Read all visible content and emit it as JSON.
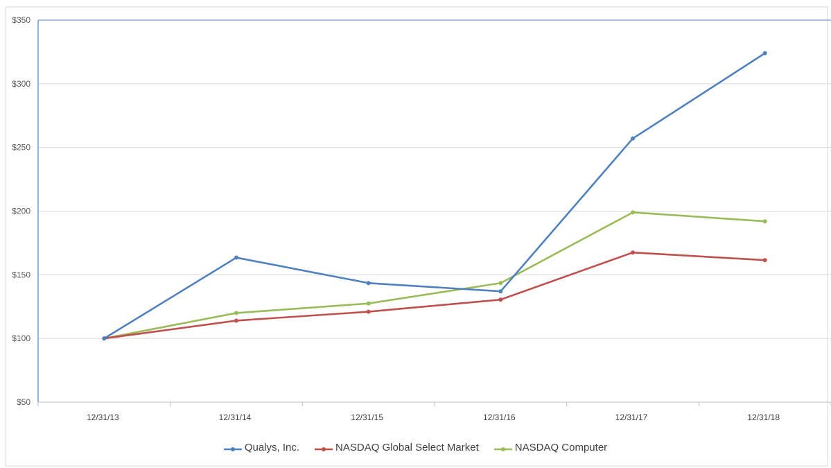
{
  "chart_data": {
    "type": "line",
    "categories": [
      "12/31/13",
      "12/31/14",
      "12/31/15",
      "12/31/16",
      "12/31/17",
      "12/31/18"
    ],
    "series": [
      {
        "name": "Qualys, Inc.",
        "color": "#4f81bd",
        "values": [
          100,
          163.5,
          143.5,
          137,
          257,
          324
        ]
      },
      {
        "name": "NASDAQ Global Select Market",
        "color": "#c0504d",
        "values": [
          100,
          114,
          121,
          130.5,
          167.5,
          161.5
        ]
      },
      {
        "name": "NASDAQ Computer",
        "color": "#9bbb59",
        "values": [
          100,
          120,
          127.5,
          143.5,
          199,
          192
        ]
      }
    ],
    "yticks": [
      "$50",
      "$100",
      "$150",
      "$200",
      "$250",
      "$300",
      "$350"
    ],
    "ylim": [
      50,
      350
    ],
    "grid": true,
    "legend_position": "bottom"
  }
}
